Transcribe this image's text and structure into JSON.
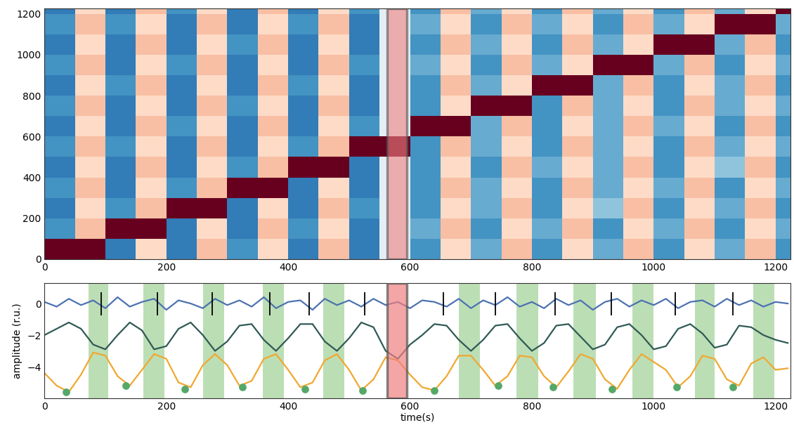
{
  "chart_data": [
    {
      "type": "heatmap",
      "x_edges": [
        0,
        50,
        100,
        150,
        200,
        250,
        300,
        350,
        400,
        450,
        500,
        550,
        600,
        650,
        700,
        750,
        800,
        850,
        900,
        950,
        1000,
        1050,
        1100,
        1150,
        1200,
        1225
      ],
      "y_edges": [
        0,
        100,
        200,
        300,
        400,
        500,
        600,
        700,
        800,
        900,
        1000,
        1100,
        1200,
        1225
      ],
      "cells": [
        [
          -1.0,
          -1.0,
          0.7,
          -0.2,
          0.7,
          -0.3,
          0.6,
          -0.2,
          0.7,
          -0.3,
          0.7,
          0.1,
          0.6,
          -0.2,
          0.5,
          -0.3,
          0.6,
          -0.2,
          0.5,
          -0.3,
          0.6,
          -0.2,
          0.5,
          -0.3,
          0.6
        ],
        [
          0.6,
          -0.3,
          -1.0,
          -1.0,
          0.7,
          -0.2,
          0.7,
          -0.3,
          0.6,
          -0.2,
          0.7,
          0.1,
          0.5,
          -0.3,
          0.6,
          -0.2,
          0.5,
          -0.3,
          0.6,
          -0.2,
          0.5,
          -0.3,
          0.6,
          -0.2,
          0.5
        ],
        [
          0.7,
          -0.2,
          0.6,
          -0.3,
          -1.0,
          -1.0,
          0.7,
          -0.2,
          0.7,
          -0.3,
          0.6,
          0.1,
          0.6,
          -0.2,
          0.5,
          -0.3,
          0.6,
          -0.2,
          0.4,
          -0.3,
          0.6,
          -0.2,
          0.5,
          -0.3,
          0.6
        ],
        [
          0.6,
          -0.3,
          0.7,
          -0.2,
          0.6,
          -0.3,
          -1.0,
          -1.0,
          0.7,
          -0.2,
          0.7,
          0.1,
          0.6,
          -0.3,
          0.5,
          -0.2,
          0.6,
          -0.3,
          0.5,
          -0.2,
          0.5,
          -0.3,
          0.6,
          -0.2,
          0.5
        ],
        [
          0.7,
          -0.2,
          0.7,
          -0.3,
          0.7,
          -0.2,
          0.6,
          -0.3,
          -1.0,
          -1.0,
          0.7,
          0.1,
          0.6,
          -0.2,
          0.6,
          -0.3,
          0.5,
          -0.2,
          0.5,
          -0.3,
          0.6,
          -0.2,
          0.4,
          -0.3,
          0.6
        ],
        [
          0.6,
          -0.3,
          0.6,
          -0.2,
          0.7,
          -0.3,
          0.7,
          -0.2,
          0.6,
          -0.3,
          -1.0,
          -1.0,
          0.6,
          -0.3,
          0.5,
          -0.2,
          0.6,
          -0.3,
          0.5,
          -0.2,
          0.6,
          -0.3,
          0.5,
          -0.2,
          0.5
        ],
        [
          0.7,
          -0.2,
          0.7,
          -0.3,
          0.6,
          -0.2,
          0.7,
          -0.3,
          0.7,
          -0.2,
          0.6,
          0.1,
          -1.0,
          -1.0,
          0.5,
          -0.3,
          0.6,
          -0.2,
          0.5,
          -0.3,
          0.5,
          -0.2,
          0.6,
          -0.3,
          0.6
        ],
        [
          0.6,
          -0.3,
          0.7,
          -0.2,
          0.7,
          -0.3,
          0.6,
          -0.2,
          0.7,
          -0.3,
          0.7,
          0.1,
          0.6,
          -0.2,
          -1.0,
          -1.0,
          0.6,
          -0.3,
          0.5,
          -0.2,
          0.6,
          -0.3,
          0.5,
          -0.2,
          0.5
        ],
        [
          0.7,
          -0.2,
          0.6,
          -0.3,
          0.7,
          -0.2,
          0.7,
          -0.3,
          0.6,
          -0.2,
          0.7,
          0.1,
          0.6,
          -0.3,
          0.5,
          -0.2,
          -1.0,
          -1.0,
          0.5,
          -0.3,
          0.6,
          -0.2,
          0.5,
          -0.3,
          0.6
        ],
        [
          0.6,
          -0.3,
          0.7,
          -0.2,
          0.6,
          -0.3,
          0.7,
          -0.2,
          0.7,
          -0.3,
          0.6,
          0.1,
          0.5,
          -0.2,
          0.6,
          -0.3,
          0.5,
          -0.2,
          -1.0,
          -1.0,
          0.5,
          -0.3,
          0.6,
          -0.2,
          0.5
        ],
        [
          0.7,
          -0.2,
          0.7,
          -0.3,
          0.7,
          -0.2,
          0.6,
          -0.3,
          0.7,
          -0.2,
          0.7,
          0.1,
          0.6,
          -0.3,
          0.5,
          -0.2,
          0.6,
          -0.3,
          0.5,
          -0.2,
          -1.0,
          -1.0,
          0.5,
          -0.3,
          0.6
        ],
        [
          0.6,
          -0.3,
          0.6,
          -0.2,
          0.7,
          -0.3,
          0.7,
          -0.2,
          0.6,
          -0.3,
          0.7,
          0.1,
          0.5,
          -0.2,
          0.6,
          -0.3,
          0.5,
          -0.2,
          0.6,
          -0.3,
          0.5,
          -0.2,
          -1.0,
          -1.0,
          0.5
        ],
        [
          0.7,
          -0.2,
          0.7,
          -0.3,
          0.6,
          -0.2,
          0.7,
          -0.3,
          0.7,
          -0.2,
          0.6,
          0.1,
          0.6,
          -0.3,
          0.5,
          -0.2,
          0.6,
          -0.3,
          0.5,
          -0.2,
          0.6,
          -0.3,
          0.5,
          -0.2,
          -1.0
        ]
      ],
      "color_range": [
        -1,
        1
      ],
      "red_spans": [
        [
          562,
          595
        ]
      ],
      "xlim": [
        0,
        1225
      ],
      "ylim": [
        0,
        1225
      ],
      "xticks": [
        0,
        200,
        400,
        600,
        800,
        1000,
        1200
      ],
      "yticks": [
        0,
        200,
        400,
        600,
        800,
        1000,
        1200
      ]
    },
    {
      "type": "line",
      "xlabel": "time(s)",
      "ylabel": "amplitude (r.u.)",
      "x": [
        0,
        20,
        40,
        60,
        80,
        100,
        120,
        140,
        160,
        180,
        200,
        220,
        240,
        260,
        280,
        300,
        320,
        340,
        360,
        380,
        400,
        420,
        440,
        460,
        480,
        500,
        520,
        540,
        560,
        580,
        600,
        620,
        640,
        660,
        680,
        700,
        720,
        740,
        760,
        780,
        800,
        820,
        840,
        860,
        880,
        900,
        920,
        940,
        960,
        980,
        1000,
        1020,
        1040,
        1060,
        1080,
        1100,
        1120,
        1140,
        1160,
        1180,
        1200,
        1220
      ],
      "series": [
        {
          "color": "#4c72b0",
          "values": [
            0.1,
            -0.2,
            0.3,
            -0.1,
            0.2,
            -0.3,
            0.4,
            -0.2,
            0.1,
            0.3,
            -0.4,
            0.2,
            0.0,
            -0.3,
            0.3,
            -0.1,
            0.2,
            -0.2,
            0.4,
            -0.3,
            0.1,
            0.2,
            -0.4,
            0.3,
            -0.1,
            0.2,
            -0.2,
            0.3,
            -0.1,
            0.1,
            -0.3,
            0.2,
            0.1,
            -0.2,
            0.3,
            -0.3,
            0.2,
            -0.1,
            0.4,
            -0.2,
            0.1,
            -0.3,
            0.3,
            -0.1,
            0.2,
            -0.4,
            0.1,
            0.3,
            -0.2,
            0.2,
            -0.1,
            0.3,
            -0.3,
            0.1,
            0.2,
            -0.2,
            0.3,
            -0.1,
            0.2,
            -0.2,
            0.1,
            0.0
          ]
        },
        {
          "color": "#2f5a55",
          "values": [
            -2.0,
            -1.6,
            -1.2,
            -1.6,
            -2.6,
            -2.9,
            -2.0,
            -1.2,
            -1.7,
            -2.9,
            -2.7,
            -1.6,
            -1.2,
            -2.0,
            -3.0,
            -2.4,
            -1.4,
            -1.3,
            -2.3,
            -3.0,
            -2.2,
            -1.3,
            -1.3,
            -2.4,
            -3.0,
            -2.2,
            -1.2,
            -1.5,
            -3.0,
            -3.5,
            -2.6,
            -2.0,
            -1.3,
            -1.4,
            -2.3,
            -3.0,
            -2.3,
            -1.4,
            -1.3,
            -2.2,
            -3.0,
            -2.5,
            -1.4,
            -1.3,
            -2.1,
            -2.9,
            -2.6,
            -1.5,
            -1.3,
            -2.0,
            -2.9,
            -2.7,
            -1.6,
            -1.3,
            -1.9,
            -2.8,
            -2.6,
            -1.4,
            -1.5,
            -2.0,
            -2.3,
            -2.5
          ]
        },
        {
          "color": "#f0a830",
          "values": [
            -4.4,
            -5.2,
            -5.6,
            -4.5,
            -3.1,
            -3.3,
            -4.6,
            -5.2,
            -4.2,
            -3.2,
            -3.5,
            -5.0,
            -5.3,
            -3.9,
            -3.2,
            -3.9,
            -5.2,
            -4.9,
            -3.5,
            -3.2,
            -4.2,
            -5.3,
            -5.0,
            -3.6,
            -3.2,
            -4.2,
            -5.5,
            -4.8,
            -3.4,
            -3.6,
            -4.5,
            -5.3,
            -5.5,
            -4.6,
            -3.3,
            -3.3,
            -4.2,
            -5.2,
            -4.6,
            -3.3,
            -3.4,
            -4.6,
            -5.3,
            -4.3,
            -3.2,
            -3.5,
            -4.8,
            -5.4,
            -4.2,
            -3.2,
            -3.7,
            -4.2,
            -5.3,
            -4.6,
            -3.3,
            -3.5,
            -4.8,
            -5.2,
            -3.8,
            -3.4,
            -4.2,
            -4.1
          ]
        },
        {
          "type": "scatter",
          "color": "#55a868",
          "marker": "o",
          "x": [
            35,
            133,
            230,
            325,
            428,
            522,
            640,
            745,
            835,
            932,
            1038,
            1130
          ],
          "values": [
            -5.6,
            -5.2,
            -5.4,
            -5.3,
            -5.4,
            -5.5,
            -5.5,
            -5.2,
            -5.3,
            -5.4,
            -5.3,
            -5.3
          ]
        }
      ],
      "events": {
        "color": "black",
        "x": [
          93,
          185,
          275,
          370,
          435,
          525,
          655,
          740,
          838,
          930,
          1035,
          1130
        ]
      },
      "green_spans": [
        [
          72,
          105
        ],
        [
          162,
          197
        ],
        [
          260,
          295
        ],
        [
          358,
          393
        ],
        [
          458,
          492
        ],
        [
          680,
          715
        ],
        [
          775,
          810
        ],
        [
          868,
          905
        ],
        [
          965,
          1000
        ],
        [
          1068,
          1100
        ],
        [
          1163,
          1198
        ]
      ],
      "red_spans": [
        [
          562,
          595
        ]
      ],
      "xlim": [
        0,
        1225
      ],
      "ylim": [
        -6,
        1.3
      ],
      "xticks": [
        0,
        200,
        400,
        600,
        800,
        1000,
        1200
      ],
      "yticks": [
        {
          "value": -4,
          "label": "−4"
        },
        {
          "value": -2,
          "label": "−2"
        },
        0
      ]
    }
  ]
}
